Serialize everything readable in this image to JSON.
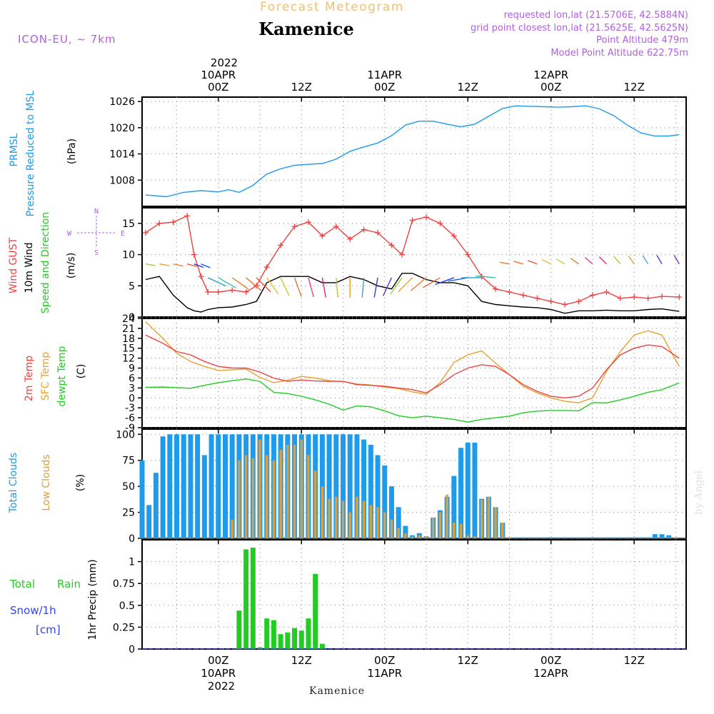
{
  "header": {
    "forecast_label": "Forecast Meteogram",
    "location": "Kamenice",
    "model": "ICON-EU, ~ 7km",
    "requested": "requested lon,lat (21.5706E, 42.5884N)",
    "grid_point": "grid point closest lon,lat (21.5625E, 42.5625N)",
    "point_altitude": "Point Altitude 479m",
    "model_altitude": "Model Point Altitude 622.75m",
    "footer_location": "Kamenice",
    "credit": "by Angel"
  },
  "time_axis": {
    "top_year": "2022",
    "bottom_year": "2022",
    "ticks": [
      {
        "hour": 0,
        "label": "00Z",
        "date": "10APR"
      },
      {
        "hour": 12,
        "label": "12Z",
        "date": ""
      },
      {
        "hour": 24,
        "label": "00Z",
        "date": "11APR"
      },
      {
        "hour": 36,
        "label": "12Z",
        "date": ""
      },
      {
        "hour": 48,
        "label": "00Z",
        "date": "12APR"
      },
      {
        "hour": 60,
        "label": "12Z",
        "date": ""
      }
    ]
  },
  "panels": {
    "pressure": {
      "label1": "PRMSL",
      "label2": "Pressure Reduced to MSL",
      "unit": "(hPa)"
    },
    "wind": {
      "label1": "Wind GUST",
      "label2": "10m Wind",
      "label3": "Speed and Direction",
      "unit": "(m/s)",
      "compass_n": "N",
      "compass_s": "S",
      "compass_w": "W",
      "compass_e": "E"
    },
    "temp": {
      "label1": "2m Temp",
      "label2": "SFC Temp",
      "label3": "dewpt Temp",
      "unit": "(C)"
    },
    "clouds": {
      "label1": "Total Clouds",
      "label2": "Low Clouds",
      "unit": "(%)"
    },
    "precip": {
      "label1": "Total",
      "label2": "Rain",
      "label3": "Snow/1h",
      "label4": "[cm]",
      "unit": "1hr Precip (mm)"
    }
  },
  "colors": {
    "pressure": "#1e9bea",
    "gust": "#f04040",
    "wind": "#000000",
    "temp2m": "#f04040",
    "sfc": "#e8a030",
    "dewpt": "#22cc22",
    "total_clouds": "#1e9bea",
    "low_clouds": "#d8a040",
    "rain": "#22cc22",
    "snow": "#3344ee",
    "purple": "#b060e0",
    "gold": "#f0c070",
    "axis": "#000000",
    "grid": "#888888"
  },
  "chart_data": [
    {
      "type": "line",
      "title": "PRMSL Pressure Reduced to MSL",
      "ylabel": "(hPa)",
      "xlabel": "hour",
      "ylim": [
        1002,
        1027
      ],
      "yticks": [
        1008,
        1014,
        1020,
        1026
      ],
      "x": [
        -10.5,
        -7.5,
        -5,
        -2.5,
        0,
        1.5,
        3,
        5,
        7,
        9,
        11,
        13,
        15,
        17,
        19,
        21,
        23,
        25,
        27,
        29,
        31,
        33,
        35,
        37,
        39,
        41,
        43,
        45,
        47,
        49,
        51,
        53,
        55,
        57,
        59,
        61,
        63,
        65,
        66.5
      ],
      "series": [
        {
          "name": "PRMSL",
          "values": [
            1004.6,
            1004.2,
            1005.2,
            1005.6,
            1005.3,
            1005.8,
            1005.2,
            1006.8,
            1009.4,
            1010.6,
            1011.4,
            1011.6,
            1011.8,
            1012.8,
            1014.6,
            1015.6,
            1016.5,
            1018.2,
            1020.6,
            1021.5,
            1021.5,
            1020.8,
            1020.2,
            1020.8,
            1022.6,
            1024.4,
            1025.0,
            1024.9,
            1024.8,
            1024.7,
            1024.8,
            1025.0,
            1024.3,
            1022.8,
            1020.6,
            1018.8,
            1018.1,
            1018.1,
            1018.4
          ]
        }
      ]
    },
    {
      "type": "line",
      "title": "Wind GUST / 10m Wind Speed and Direction",
      "ylabel": "(m/s)",
      "xlabel": "hour",
      "ylim": [
        0,
        17.5
      ],
      "yticks": [
        0,
        5,
        10,
        15
      ],
      "x": [
        -10.5,
        -8.5,
        -6.5,
        -4.5,
        -3.5,
        -2.5,
        -1.5,
        0,
        2,
        4,
        5.5,
        7,
        9,
        11,
        13,
        15,
        17,
        19,
        21,
        23,
        25,
        26.5,
        28,
        30,
        32,
        34,
        36,
        38,
        40,
        42,
        44,
        46,
        48,
        50,
        52,
        54,
        56,
        58,
        60,
        62,
        64,
        66.5
      ],
      "series": [
        {
          "name": "Wind GUST",
          "values": [
            13.5,
            15,
            15.2,
            16.2,
            10,
            6.5,
            4,
            4,
            4.3,
            4,
            5,
            8,
            11.5,
            14.5,
            15.2,
            13,
            14.5,
            12.5,
            14,
            13.5,
            11.5,
            10,
            15.5,
            16,
            15,
            13,
            10,
            6.5,
            4.5,
            4,
            3.5,
            3,
            2.5,
            2,
            2.5,
            3.5,
            4,
            3,
            3.2,
            3,
            3.3,
            3.2
          ]
        },
        {
          "name": "10m Wind",
          "values": [
            6,
            6.5,
            3.5,
            1.5,
            1,
            0.8,
            1.2,
            1.5,
            1.6,
            2,
            2.5,
            5.5,
            6.5,
            6.5,
            6.5,
            5.5,
            5.5,
            6.5,
            6,
            5,
            4.5,
            7,
            7,
            6,
            5.5,
            5.5,
            5,
            2.5,
            2,
            1.8,
            1.6,
            1.5,
            1.2,
            0.6,
            1,
            1,
            1.1,
            1,
            1,
            1.2,
            1.3,
            0.9
          ]
        }
      ],
      "wind_dirs": [
        -10,
        -10,
        -12,
        -15,
        -20,
        -22,
        -25,
        -30,
        -35,
        -40,
        -45,
        -55,
        -65,
        -70,
        -75,
        -80,
        -85,
        -90,
        -95,
        -100,
        -115,
        -125,
        -135,
        -140,
        -150,
        -160,
        -170,
        -180,
        -185,
        -190,
        -195,
        -200,
        -205,
        -210,
        -215,
        -220,
        -225,
        -230,
        -235,
        -238,
        -240,
        -240
      ]
    },
    {
      "type": "line",
      "title": "2m Temp / SFC Temp / dewpt Temp",
      "ylabel": "(C)",
      "xlabel": "hour",
      "ylim": [
        -9,
        24
      ],
      "yticks": [
        -9,
        -6,
        -3,
        0,
        3,
        6,
        9,
        12,
        15,
        18,
        21,
        24
      ],
      "x": [
        -10.5,
        -8,
        -6,
        -4,
        -2,
        0,
        2,
        4,
        6,
        8,
        10,
        12,
        14,
        16,
        18,
        20,
        22,
        24,
        26,
        28,
        30,
        32,
        34,
        36,
        38,
        40,
        42,
        44,
        46,
        48,
        50,
        52,
        54,
        56,
        58,
        60,
        62,
        64,
        66.5
      ],
      "series": [
        {
          "name": "2m Temp",
          "values": [
            19,
            16.5,
            14,
            13,
            11,
            9.5,
            9,
            9,
            7.8,
            6,
            5,
            5.4,
            5.1,
            5,
            5,
            4,
            3.8,
            3.5,
            3,
            2.5,
            1.5,
            4,
            7,
            9,
            10,
            9.5,
            7,
            4,
            2,
            0.5,
            0,
            0.5,
            3,
            8.5,
            13,
            15,
            16,
            15.5,
            12
          ]
        },
        {
          "name": "SFC Temp",
          "values": [
            23,
            18,
            13.5,
            11,
            9.5,
            8.3,
            8.5,
            8.7,
            6.2,
            4.6,
            5.3,
            6.5,
            6,
            5.2,
            4.9,
            4.2,
            3.9,
            3.3,
            2.8,
            1.8,
            1.1,
            4.6,
            10.7,
            13,
            14.2,
            10.5,
            7,
            3.5,
            1.5,
            0,
            -1,
            -1.5,
            0,
            8,
            14,
            19,
            20.3,
            19,
            9.5
          ]
        },
        {
          "name": "dewpt Temp",
          "values": [
            3.2,
            3.3,
            3.1,
            2.9,
            3.8,
            4.6,
            5.2,
            5.7,
            5,
            1.7,
            1.3,
            0.5,
            -0.6,
            -1.9,
            -3.7,
            -2.4,
            -2.7,
            -3.9,
            -5.4,
            -6,
            -5.5,
            -6,
            -6.5,
            -7.3,
            -6.5,
            -6,
            -5.5,
            -4.5,
            -4,
            -3.8,
            -3.8,
            -3.9,
            -1.4,
            -1.5,
            -0.6,
            0.5,
            1.7,
            2.5,
            4.5
          ]
        }
      ]
    },
    {
      "type": "bar",
      "title": "Total Clouds / Low Clouds",
      "ylabel": "(%)",
      "xlabel": "hour",
      "ylim": [
        0,
        105
      ],
      "yticks": [
        0,
        25,
        50,
        75,
        100
      ],
      "x": [
        -11,
        -10,
        -9,
        -8,
        -7,
        -6,
        -5,
        -4,
        -3,
        -2,
        -1,
        0,
        1,
        2,
        3,
        4,
        5,
        6,
        7,
        8,
        9,
        10,
        11,
        12,
        13,
        14,
        15,
        16,
        17,
        18,
        19,
        20,
        21,
        22,
        23,
        24,
        25,
        26,
        27,
        28,
        29,
        30,
        31,
        32,
        33,
        34,
        35,
        36,
        37,
        38,
        39,
        40,
        41,
        42,
        43,
        44,
        45,
        46,
        47,
        48,
        49,
        50,
        51,
        52,
        53,
        54,
        55,
        56,
        57,
        58,
        59,
        60,
        61,
        62,
        63,
        64,
        65,
        66
      ],
      "series": [
        {
          "name": "Total Clouds",
          "values": [
            75,
            32,
            63,
            98,
            100,
            100,
            100,
            100,
            100,
            80,
            100,
            100,
            100,
            100,
            100,
            100,
            100,
            100,
            100,
            100,
            100,
            100,
            100,
            100,
            100,
            100,
            100,
            100,
            100,
            100,
            100,
            100,
            95,
            90,
            80,
            70,
            50,
            30,
            12,
            3,
            5,
            2,
            20,
            27,
            40,
            60,
            87,
            92,
            92,
            38,
            40,
            30,
            15,
            1,
            1,
            1,
            1,
            1,
            1,
            1,
            1,
            1,
            1,
            1,
            1,
            1,
            1,
            1,
            1,
            1,
            1,
            1,
            1,
            1,
            4,
            4,
            3,
            1
          ]
        },
        {
          "name": "Low Clouds",
          "values": [
            0,
            0,
            0,
            0,
            0,
            0,
            0,
            0,
            0,
            0,
            0,
            0,
            0,
            18,
            75,
            80,
            77,
            95,
            80,
            75,
            85,
            90,
            90,
            95,
            80,
            65,
            50,
            38,
            40,
            36,
            25,
            40,
            36,
            32,
            30,
            25,
            18,
            10,
            5,
            2,
            3,
            2,
            20,
            25,
            42,
            15,
            14,
            3,
            2,
            37,
            40,
            30,
            15,
            1,
            0,
            0,
            0,
            0,
            0,
            0,
            0,
            0,
            0,
            0,
            0,
            0,
            0,
            0,
            0,
            0,
            0,
            0,
            0,
            0,
            0,
            0,
            0,
            1
          ]
        }
      ]
    },
    {
      "type": "bar",
      "title": "Total Rain Snow/1h",
      "ylabel": "1hr Precip (mm)",
      "xlabel": "hour",
      "ylim": [
        0,
        1.25
      ],
      "yticks": [
        0,
        0.25,
        0.5,
        0.75,
        1
      ],
      "x": [
        3,
        4,
        5,
        6,
        7,
        8,
        9,
        10,
        11,
        12,
        13,
        14,
        15
      ],
      "series": [
        {
          "name": "Rain",
          "values": [
            0.44,
            1.14,
            1.16,
            0.02,
            0.35,
            0.33,
            0.17,
            0.19,
            0.24,
            0.21,
            0.35,
            0.86,
            0.06
          ]
        },
        {
          "name": "Snow",
          "values": [
            0,
            0,
            0,
            0,
            0,
            0,
            0,
            0,
            0,
            0,
            0,
            0,
            0
          ]
        }
      ]
    }
  ]
}
